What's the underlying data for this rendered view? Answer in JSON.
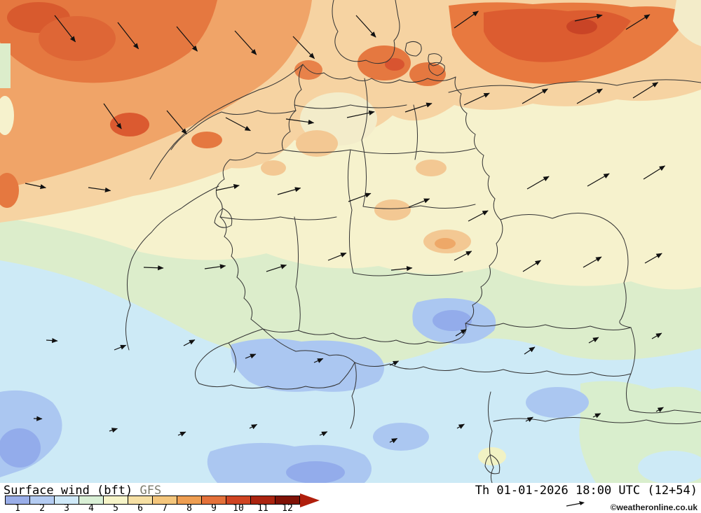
{
  "map": {
    "product_label": "Surface wind (bft)",
    "model_label": "GFS",
    "valid_label": "Th 01-01-2026 18:00 UTC (12+54)",
    "copyright": "©weatheronline.co.uk"
  },
  "legend": {
    "values": [
      "1",
      "2",
      "3",
      "4",
      "5",
      "6",
      "7",
      "8",
      "9",
      "10",
      "11",
      "12"
    ],
    "colors": [
      "#9aaee8",
      "#b4ccf2",
      "#cfe9f8",
      "#d9f0d6",
      "#f6f4c8",
      "#f6e0a4",
      "#f4c67c",
      "#ee9e52",
      "#e4713a",
      "#cf4422",
      "#ab2410",
      "#7f1206"
    ],
    "arrow_color": "#b01e0c"
  },
  "map_colors": {
    "base_cream": "#f6f2cd",
    "pale_green": "#dcedcb",
    "cyan": "#cdeaf6",
    "light_blue": "#abc7f1",
    "periwinkle": "#93aceb",
    "light_orange": "#f6d3a2",
    "orange": "#f0a468",
    "red_orange": "#e57840",
    "deep_red": "#d85a2e",
    "border_line": "#333333"
  },
  "wind_arrows": [
    [
      78,
      22,
      52,
      48
    ],
    [
      168,
      32,
      52,
      48
    ],
    [
      252,
      38,
      50,
      46
    ],
    [
      335,
      44,
      48,
      46
    ],
    [
      418,
      52,
      46,
      44
    ],
    [
      508,
      22,
      48,
      42
    ],
    [
      648,
      40,
      -35,
      42
    ],
    [
      820,
      30,
      -12,
      40
    ],
    [
      893,
      42,
      -32,
      40
    ],
    [
      148,
      148,
      55,
      44
    ],
    [
      238,
      158,
      50,
      44
    ],
    [
      322,
      168,
      28,
      40
    ],
    [
      408,
      170,
      8,
      40
    ],
    [
      495,
      168,
      -12,
      40
    ],
    [
      578,
      160,
      -18,
      40
    ],
    [
      662,
      150,
      -25,
      40
    ],
    [
      745,
      148,
      -30,
      42
    ],
    [
      823,
      148,
      -30,
      42
    ],
    [
      903,
      140,
      -32,
      42
    ],
    [
      36,
      262,
      12,
      30
    ],
    [
      126,
      268,
      8,
      32
    ],
    [
      308,
      272,
      -12,
      34
    ],
    [
      396,
      278,
      -16,
      34
    ],
    [
      497,
      288,
      -20,
      34
    ],
    [
      583,
      296,
      -22,
      32
    ],
    [
      668,
      316,
      -28,
      32
    ],
    [
      752,
      270,
      -30,
      36
    ],
    [
      838,
      266,
      -30,
      36
    ],
    [
      918,
      256,
      -32,
      36
    ],
    [
      205,
      382,
      2,
      28
    ],
    [
      292,
      384,
      -8,
      30
    ],
    [
      380,
      388,
      -18,
      30
    ],
    [
      468,
      372,
      -22,
      28
    ],
    [
      558,
      386,
      -6,
      30
    ],
    [
      648,
      372,
      -28,
      28
    ],
    [
      746,
      388,
      -32,
      30
    ],
    [
      832,
      382,
      -30,
      30
    ],
    [
      920,
      376,
      -30,
      28
    ],
    [
      66,
      486,
      4,
      16
    ],
    [
      163,
      500,
      -22,
      18
    ],
    [
      262,
      494,
      -28,
      18
    ],
    [
      350,
      512,
      -22,
      16
    ],
    [
      448,
      518,
      -24,
      14
    ],
    [
      556,
      522,
      -26,
      14
    ],
    [
      650,
      480,
      -32,
      18
    ],
    [
      748,
      506,
      -34,
      18
    ],
    [
      840,
      490,
      -30,
      16
    ],
    [
      930,
      484,
      -30,
      16
    ],
    [
      48,
      598,
      2,
      12
    ],
    [
      156,
      616,
      -18,
      12
    ],
    [
      254,
      622,
      -24,
      12
    ],
    [
      356,
      612,
      -28,
      12
    ],
    [
      456,
      622,
      -26,
      12
    ],
    [
      556,
      632,
      -28,
      12
    ],
    [
      652,
      612,
      -30,
      12
    ],
    [
      750,
      602,
      -30,
      12
    ],
    [
      846,
      596,
      -26,
      12
    ],
    [
      936,
      588,
      -30,
      12
    ]
  ]
}
